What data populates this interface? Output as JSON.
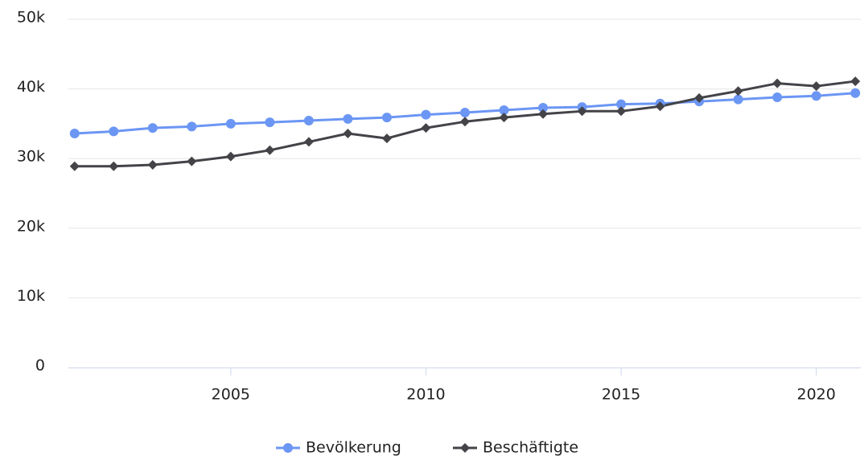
{
  "chart_data": {
    "type": "line",
    "x": [
      2001,
      2002,
      2003,
      2004,
      2005,
      2006,
      2007,
      2008,
      2009,
      2010,
      2011,
      2012,
      2013,
      2014,
      2015,
      2016,
      2017,
      2018,
      2019,
      2020,
      2021
    ],
    "series": [
      {
        "name": "Bevölkerung",
        "color": "#6b96f4",
        "marker": "circle",
        "values": [
          33600,
          33900,
          34400,
          34600,
          35000,
          35200,
          35450,
          35700,
          35900,
          36300,
          36600,
          36950,
          37300,
          37400,
          37800,
          37900,
          38200,
          38500,
          38800,
          39000,
          39400
        ]
      },
      {
        "name": "Beschäftigte",
        "color": "#434348",
        "marker": "diamond",
        "values": [
          28900,
          28900,
          29100,
          29600,
          30300,
          31200,
          32400,
          33600,
          32900,
          34400,
          35300,
          35900,
          36400,
          36800,
          36800,
          37500,
          38700,
          39700,
          40800,
          40400,
          41100
        ]
      }
    ],
    "xlim": [
      2000.84,
      2021.14
    ],
    "xticks": [
      2005,
      2010,
      2015,
      2020
    ],
    "ylim": [
      0,
      50000
    ],
    "yticks": [
      0,
      {
        "value": 10000,
        "label": "10k"
      },
      {
        "value": 20000,
        "label": "20k"
      },
      {
        "value": 30000,
        "label": "30k"
      },
      {
        "value": 40000,
        "label": "40k"
      },
      {
        "value": 50000,
        "label": "50k"
      }
    ],
    "grid": true,
    "legend": "bottom"
  }
}
